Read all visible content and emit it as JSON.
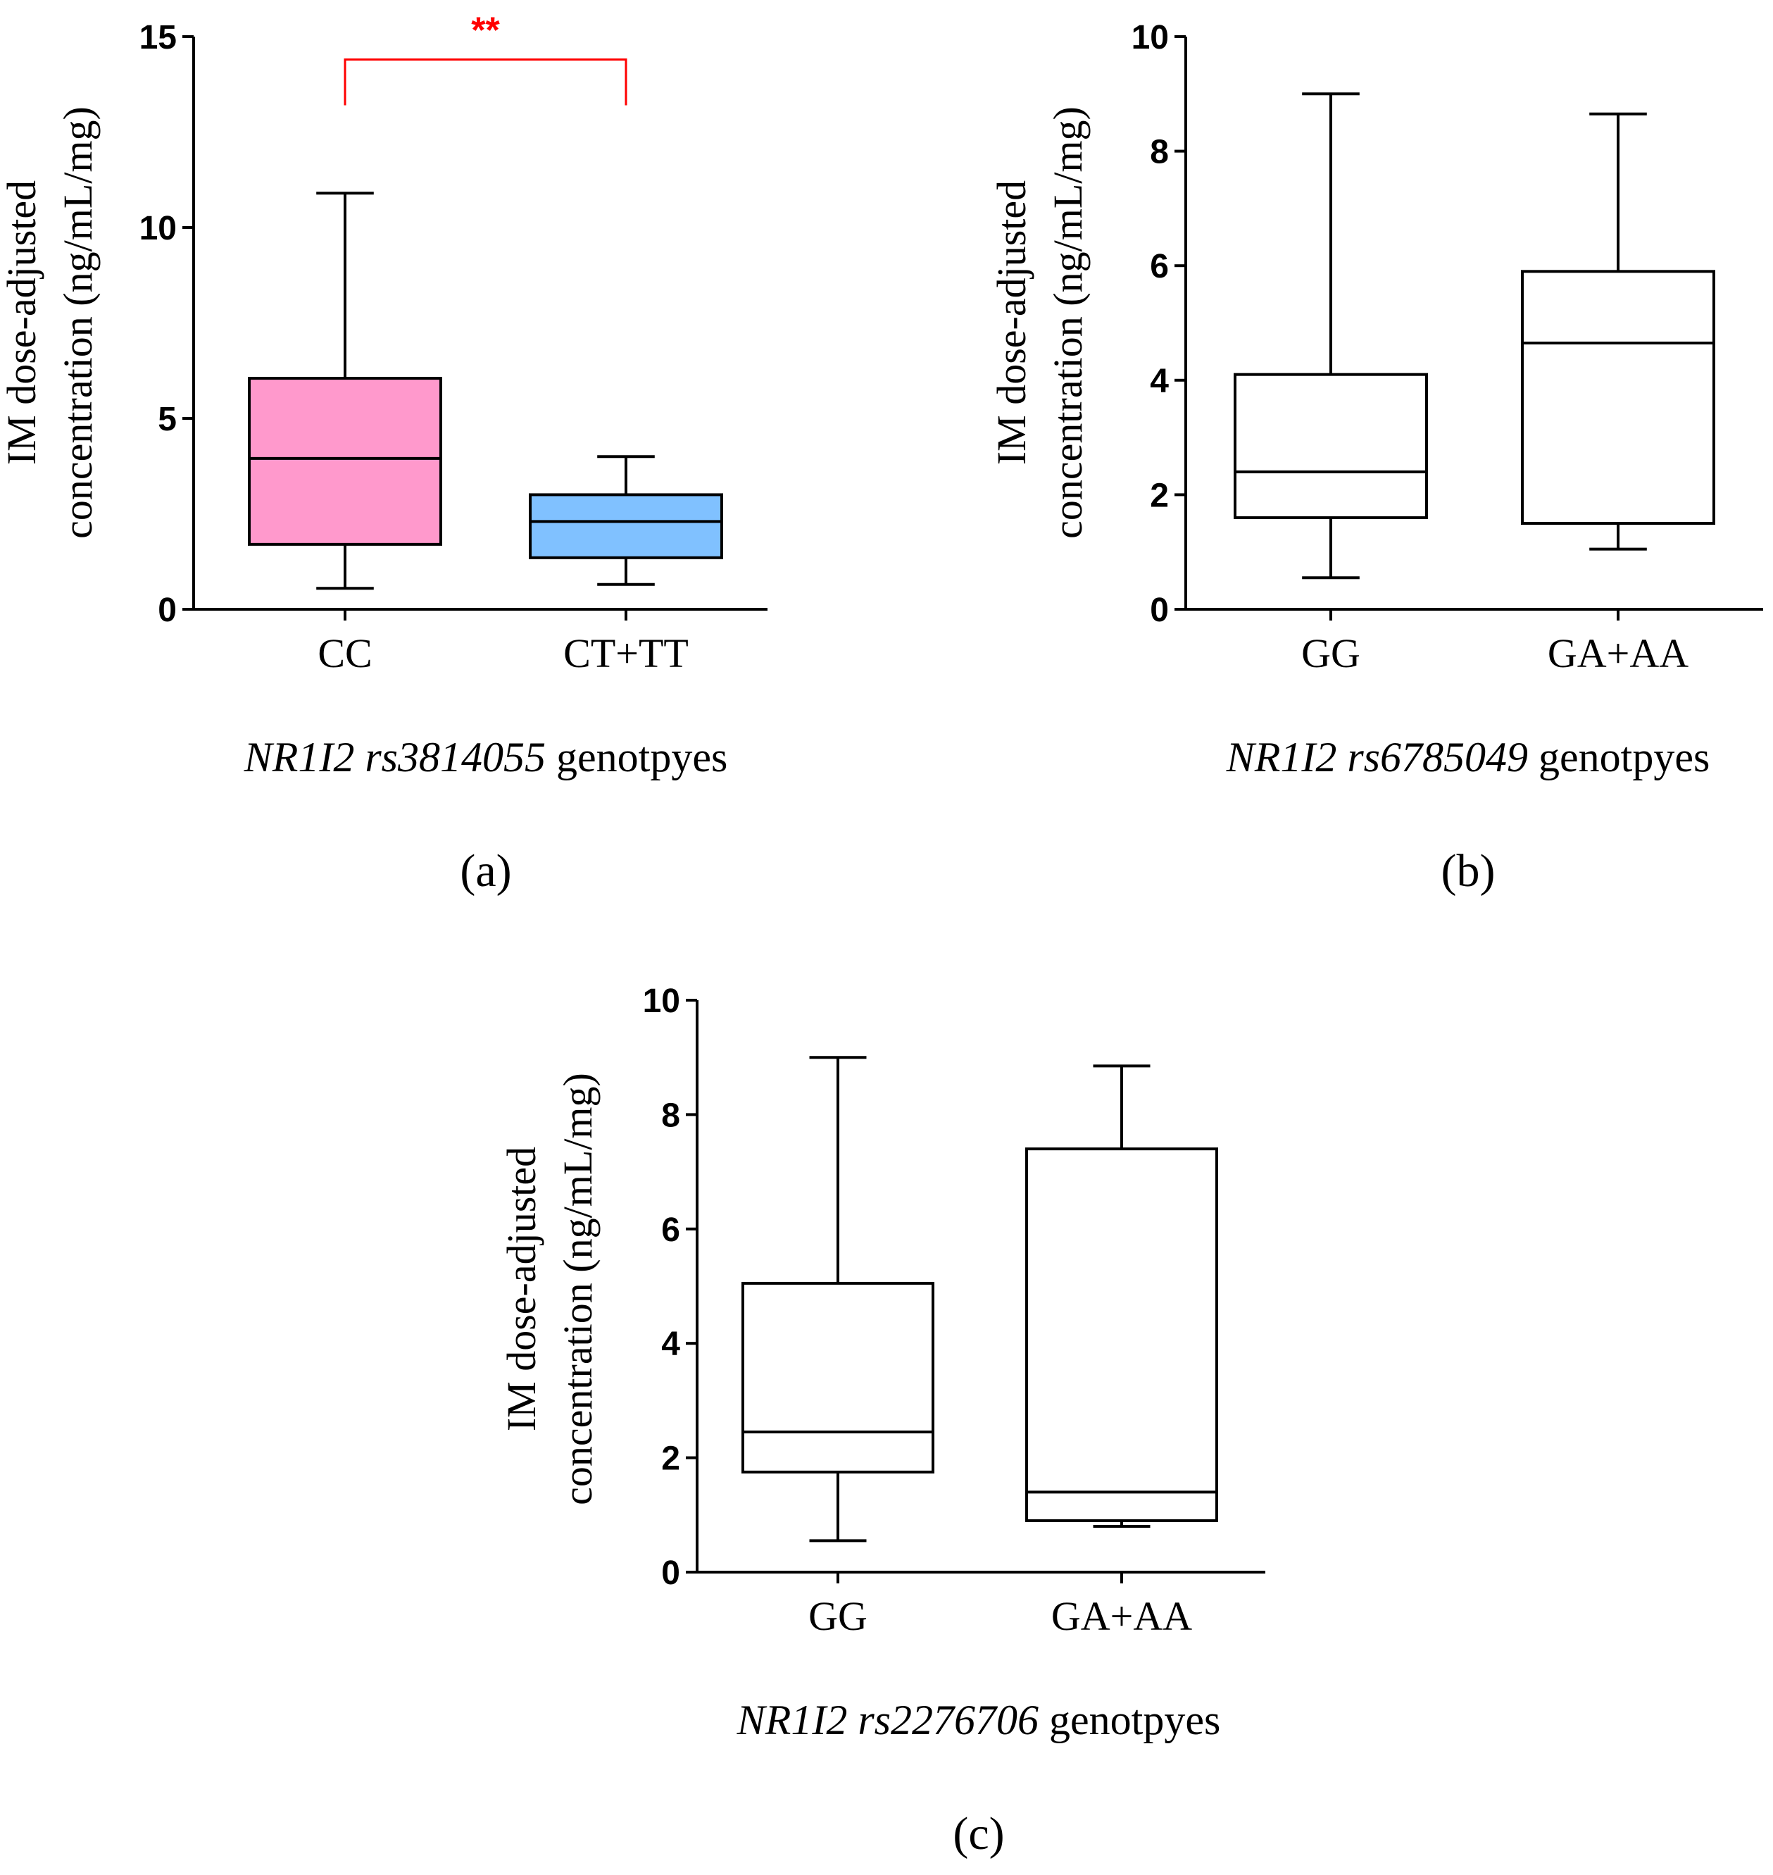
{
  "chart_data": [
    {
      "type": "box",
      "panel_label": "(a)",
      "xlabel": {
        "gene": "NR1I2",
        "snp": "rs3814055",
        "suffix": "genotpyes"
      },
      "ylabel_line1": "IM dose-adjusted",
      "ylabel_line2": "concentration (ng/mL/mg)",
      "ylim": [
        0,
        15
      ],
      "yticks": [
        0,
        5,
        10,
        15
      ],
      "categories": [
        "CC",
        "CT+TT"
      ],
      "boxes": [
        {
          "name": "CC",
          "min": 0.55,
          "q1": 1.7,
          "median": 3.95,
          "q3": 6.05,
          "max": 10.9,
          "fill": "#ff99cc"
        },
        {
          "name": "CT+TT",
          "min": 0.65,
          "q1": 1.35,
          "median": 2.3,
          "q3": 3.0,
          "max": 4.0,
          "fill": "#80c1ff"
        }
      ],
      "significance": {
        "label": "**",
        "between": [
          0,
          1
        ],
        "y": 14.4,
        "drop_to": 13.2,
        "color": "#ff0000"
      }
    },
    {
      "type": "box",
      "panel_label": "(b)",
      "xlabel": {
        "gene": "NR1I2",
        "snp": "rs6785049",
        "suffix": "genotpyes"
      },
      "ylabel_line1": "IM dose-adjusted",
      "ylabel_line2": "concentration (ng/mL/mg)",
      "ylim": [
        0,
        10
      ],
      "yticks": [
        0,
        2,
        4,
        6,
        8,
        10
      ],
      "categories": [
        "GG",
        "GA+AA"
      ],
      "boxes": [
        {
          "name": "GG",
          "min": 0.55,
          "q1": 1.6,
          "median": 2.4,
          "q3": 4.1,
          "max": 9.0,
          "fill": "#ffffff"
        },
        {
          "name": "GA+AA",
          "min": 1.05,
          "q1": 1.5,
          "median": 4.65,
          "q3": 5.9,
          "max": 8.65,
          "fill": "#ffffff"
        }
      ]
    },
    {
      "type": "box",
      "panel_label": "(c)",
      "xlabel": {
        "gene": "NR1I2",
        "snp": "rs2276706",
        "suffix": "genotpyes"
      },
      "ylabel_line1": "IM dose-adjusted",
      "ylabel_line2": "concentration (ng/mL/mg)",
      "ylim": [
        0,
        10
      ],
      "yticks": [
        0,
        2,
        4,
        6,
        8,
        10
      ],
      "categories": [
        "GG",
        "GA+AA"
      ],
      "boxes": [
        {
          "name": "GG",
          "min": 0.55,
          "q1": 1.75,
          "median": 2.45,
          "q3": 5.05,
          "max": 9.0,
          "fill": "#ffffff"
        },
        {
          "name": "GA+AA",
          "min": 0.8,
          "q1": 0.9,
          "median": 1.4,
          "q3": 7.4,
          "max": 8.85,
          "fill": "#ffffff"
        }
      ]
    }
  ]
}
